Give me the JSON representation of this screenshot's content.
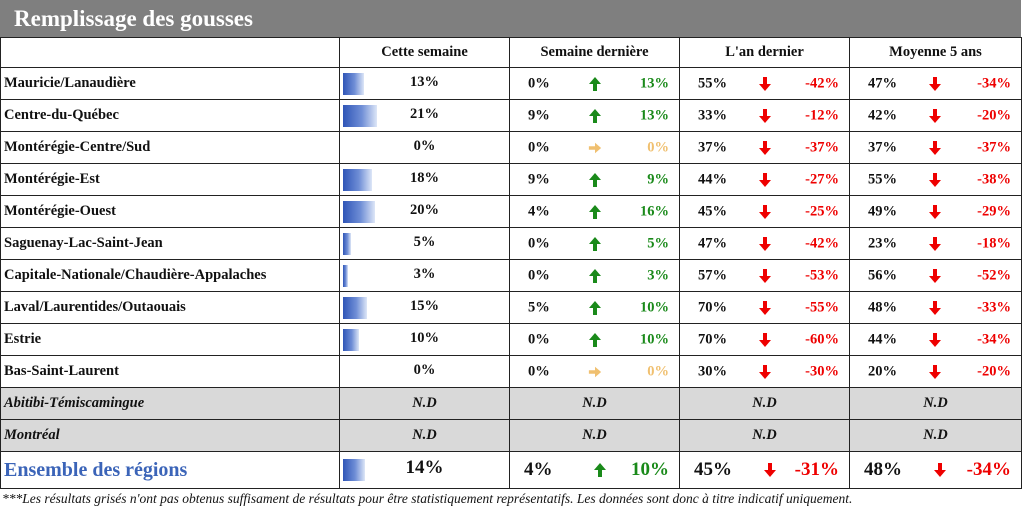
{
  "title": "Remplissage des gousses",
  "columns": [
    "Cette semaine",
    "Semaine dernière",
    "L'an dernier",
    "Moyenne 5 ans"
  ],
  "colors": {
    "up": "#1a8a1a",
    "down": "#ee0000",
    "flat": "#f0c070",
    "bar": "#2f55b7",
    "gray_row": "#d9d9d9",
    "title_bg": "#7f7f7f"
  },
  "rows": [
    {
      "region": "Mauricie/Lanaudière",
      "this_week": "13%",
      "bar_fraction": 0.13,
      "last_week": "0%",
      "last_week_change": "13%",
      "last_week_trend": "up",
      "last_year": "55%",
      "last_year_change": "-42%",
      "last_year_trend": "down",
      "avg5": "47%",
      "avg5_change": "-34%",
      "avg5_trend": "down"
    },
    {
      "region": "Centre-du-Québec",
      "this_week": "21%",
      "bar_fraction": 0.21,
      "last_week": "9%",
      "last_week_change": "13%",
      "last_week_trend": "up",
      "last_year": "33%",
      "last_year_change": "-12%",
      "last_year_trend": "down",
      "avg5": "42%",
      "avg5_change": "-20%",
      "avg5_trend": "down"
    },
    {
      "region": "Montérégie-Centre/Sud",
      "this_week": "0%",
      "bar_fraction": 0,
      "last_week": "0%",
      "last_week_change": "0%",
      "last_week_trend": "flat",
      "last_year": "37%",
      "last_year_change": "-37%",
      "last_year_trend": "down",
      "avg5": "37%",
      "avg5_change": "-37%",
      "avg5_trend": "down"
    },
    {
      "region": "Montérégie-Est",
      "this_week": "18%",
      "bar_fraction": 0.18,
      "last_week": "9%",
      "last_week_change": "9%",
      "last_week_trend": "up",
      "last_year": "44%",
      "last_year_change": "-27%",
      "last_year_trend": "down",
      "avg5": "55%",
      "avg5_change": "-38%",
      "avg5_trend": "down"
    },
    {
      "region": "Montérégie-Ouest",
      "this_week": "20%",
      "bar_fraction": 0.2,
      "last_week": "4%",
      "last_week_change": "16%",
      "last_week_trend": "up",
      "last_year": "45%",
      "last_year_change": "-25%",
      "last_year_trend": "down",
      "avg5": "49%",
      "avg5_change": "-29%",
      "avg5_trend": "down"
    },
    {
      "region": "Saguenay-Lac-Saint-Jean",
      "this_week": "5%",
      "bar_fraction": 0.05,
      "last_week": "0%",
      "last_week_change": "5%",
      "last_week_trend": "up",
      "last_year": "47%",
      "last_year_change": "-42%",
      "last_year_trend": "down",
      "avg5": "23%",
      "avg5_change": "-18%",
      "avg5_trend": "down"
    },
    {
      "region": "Capitale-Nationale/Chaudière-Appalaches",
      "this_week": "3%",
      "bar_fraction": 0.03,
      "last_week": "0%",
      "last_week_change": "3%",
      "last_week_trend": "up",
      "last_year": "57%",
      "last_year_change": "-53%",
      "last_year_trend": "down",
      "avg5": "56%",
      "avg5_change": "-52%",
      "avg5_trend": "down"
    },
    {
      "region": "Laval/Laurentides/Outaouais",
      "this_week": "15%",
      "bar_fraction": 0.15,
      "last_week": "5%",
      "last_week_change": "10%",
      "last_week_trend": "up",
      "last_year": "70%",
      "last_year_change": "-55%",
      "last_year_trend": "down",
      "avg5": "48%",
      "avg5_change": "-33%",
      "avg5_trend": "down"
    },
    {
      "region": "Estrie",
      "this_week": "10%",
      "bar_fraction": 0.1,
      "last_week": "0%",
      "last_week_change": "10%",
      "last_week_trend": "up",
      "last_year": "70%",
      "last_year_change": "-60%",
      "last_year_trend": "down",
      "avg5": "44%",
      "avg5_change": "-34%",
      "avg5_trend": "down"
    },
    {
      "region": "Bas-Saint-Laurent",
      "this_week": "0%",
      "bar_fraction": 0,
      "last_week": "0%",
      "last_week_change": "0%",
      "last_week_trend": "flat",
      "last_year": "30%",
      "last_year_change": "-30%",
      "last_year_trend": "down",
      "avg5": "20%",
      "avg5_change": "-20%",
      "avg5_trend": "down"
    }
  ],
  "gray_rows": [
    {
      "region": "Abitibi-Témiscamingue",
      "values": [
        "N.D",
        "N.D",
        "N.D",
        "N.D"
      ]
    },
    {
      "region": "Montréal",
      "values": [
        "N.D",
        "N.D",
        "N.D",
        "N.D"
      ]
    }
  ],
  "total": {
    "region": "Ensemble des régions",
    "this_week": "14%",
    "bar_fraction": 0.14,
    "last_week": "4%",
    "last_week_change": "10%",
    "last_week_trend": "up",
    "last_year": "45%",
    "last_year_change": "-31%",
    "last_year_trend": "down",
    "avg5": "48%",
    "avg5_change": "-34%",
    "avg5_trend": "down"
  },
  "footnote": "***Les résultats grisés n'ont pas obtenus suffisament de résultats pour être statistiquement représentatifs. Les données sont donc à titre indicatif uniquement."
}
